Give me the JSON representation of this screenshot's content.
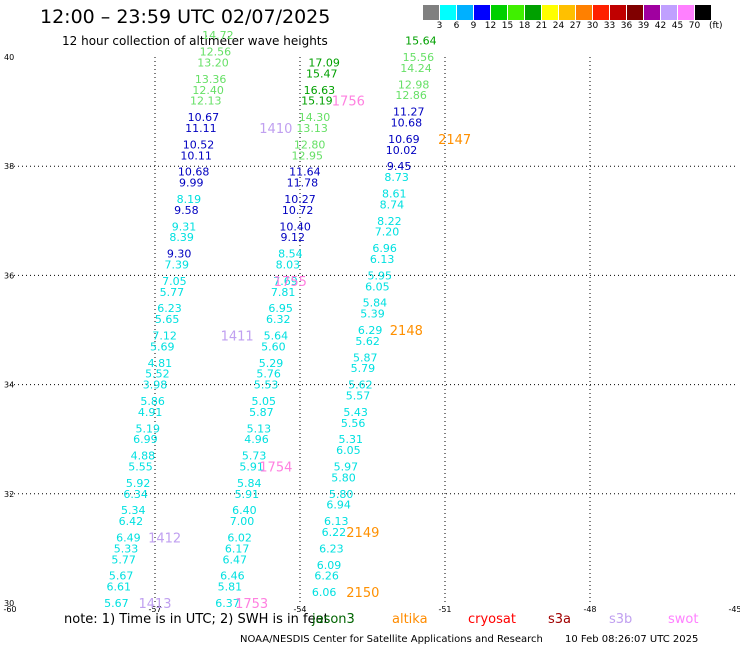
{
  "header": {
    "title": "12:00 – 23:59 UTC 02/07/2025",
    "subtitle": "12 hour collection of altimeter wave heights"
  },
  "colorbar": {
    "colors": [
      "#808080",
      "#00ffff",
      "#00b0ff",
      "#0000ff",
      "#00d000",
      "#40f000",
      "#00a000",
      "#ffff00",
      "#ffc000",
      "#ff8000",
      "#ff2000",
      "#c00000",
      "#800000",
      "#a000a0",
      "#c0a0ff",
      "#ff80ff",
      "#000000"
    ],
    "labels": [
      "3",
      "6",
      "9",
      "12",
      "15",
      "18",
      "21",
      "24",
      "27",
      "30",
      "33",
      "36",
      "39",
      "42",
      "45",
      "70"
    ],
    "unit": "(ft)"
  },
  "footer": {
    "note": "note: 1) Time is in UTC; 2) SWH is in feet",
    "credit": "NOAA/NESDIS Center for Satellite Applications and Research",
    "timestamp": "10 Feb 08:26:07 UTC 2025",
    "missions": [
      {
        "label": "jason3",
        "color": "#006400"
      },
      {
        "label": "altika",
        "color": "#ff8c00"
      },
      {
        "label": "cryosat",
        "color": "#ff0000"
      },
      {
        "label": "s3a",
        "color": "#a00000"
      },
      {
        "label": "s3b",
        "color": "#c0a0f0"
      },
      {
        "label": "swot",
        "color": "#ff80ff"
      }
    ]
  },
  "chart_data": {
    "type": "scatter",
    "xlim": [
      -60,
      -45
    ],
    "ylim": [
      30,
      40
    ],
    "x_ticks": [
      "-60",
      "-57",
      "-54",
      "-51",
      "-48",
      "-45"
    ],
    "y_ticks": [
      "30",
      "32",
      "34",
      "36",
      "38",
      "40"
    ],
    "grid": true,
    "series": [
      {
        "name": "1413",
        "points": [
          [
            "5.67",
            -57.8,
            30.0,
            "#00e0e0"
          ],
          [
            "6.61",
            -57.75,
            30.3,
            "#00e0e0"
          ],
          [
            "5.67",
            -57.7,
            30.5,
            "#00e0e0"
          ],
          [
            "5.77",
            -57.65,
            30.8,
            "#00e0e0"
          ],
          [
            "5.33",
            -57.6,
            31.0,
            "#00e0e0"
          ],
          [
            "6.49",
            -57.55,
            31.2,
            "#00e0e0"
          ],
          [
            "6.42",
            -57.5,
            31.5,
            "#00e0e0"
          ],
          [
            "5.34",
            -57.45,
            31.7,
            "#00e0e0"
          ],
          [
            "6.34",
            -57.4,
            32.0,
            "#00e0e0"
          ],
          [
            "5.92",
            -57.35,
            32.2,
            "#00e0e0"
          ],
          [
            "5.55",
            -57.3,
            32.5,
            "#00e0e0"
          ],
          [
            "4.88",
            -57.25,
            32.7,
            "#00e0e0"
          ],
          [
            "6.99",
            -57.2,
            33.0,
            "#00e0e0"
          ],
          [
            "5.19",
            -57.15,
            33.2,
            "#00e0e0"
          ],
          [
            "4.91",
            -57.1,
            33.5,
            "#00e0e0"
          ],
          [
            "5.86",
            -57.05,
            33.7,
            "#00e0e0"
          ],
          [
            "3.98",
            -57.0,
            34.0,
            "#00e0e0"
          ],
          [
            "5.52",
            -56.95,
            34.2,
            "#00e0e0"
          ],
          [
            "4.81",
            -56.9,
            34.4,
            "#00e0e0"
          ],
          [
            "5.69",
            -56.85,
            34.7,
            "#00e0e0"
          ],
          [
            "7.12",
            -56.8,
            34.9,
            "#00e0e0"
          ],
          [
            "5.65",
            -56.75,
            35.2,
            "#00e0e0"
          ],
          [
            "6.23",
            -56.7,
            35.4,
            "#00e0e0"
          ],
          [
            "5.77",
            -56.65,
            35.7,
            "#00e0e0"
          ],
          [
            "7.05",
            -56.6,
            35.9,
            "#00e0e0"
          ],
          [
            "7.39",
            -56.55,
            36.2,
            "#00e0e0"
          ],
          [
            "9.30",
            -56.5,
            36.4,
            "#0000c0"
          ],
          [
            "8.39",
            -56.45,
            36.7,
            "#00e0e0"
          ],
          [
            "9.31",
            -56.4,
            36.9,
            "#00e0e0"
          ],
          [
            "9.58",
            -56.35,
            37.2,
            "#0000c0"
          ],
          [
            "8.19",
            -56.3,
            37.4,
            "#00e0e0"
          ],
          [
            "9.99",
            -56.25,
            37.7,
            "#0000c0"
          ],
          [
            "10.68",
            -56.2,
            37.9,
            "#0000c0"
          ],
          [
            "10.11",
            -56.15,
            38.2,
            "#0000c0"
          ],
          [
            "10.52",
            -56.1,
            38.4,
            "#0000c0"
          ],
          [
            "11.11",
            -56.05,
            38.7,
            "#0000c0"
          ],
          [
            "10.67",
            -56.0,
            38.9,
            "#0000c0"
          ],
          [
            "12.13",
            -55.95,
            39.2,
            "#66e066"
          ],
          [
            "12.40",
            -55.9,
            39.4,
            "#66e066"
          ],
          [
            "13.36",
            -55.85,
            39.6,
            "#66e066"
          ],
          [
            "13.20",
            -55.8,
            39.9,
            "#66e066"
          ],
          [
            "12.56",
            -55.75,
            40.1,
            "#66e066"
          ],
          [
            "14.72",
            -55.7,
            40.4,
            "#66e066"
          ]
        ],
        "label_pos": [
          -57.0,
          30.0
        ]
      },
      {
        "name": "1412",
        "points": [],
        "label_pos": [
          -56.8,
          31.2
        ]
      },
      {
        "name": "1411",
        "points": [],
        "label_pos": [
          -55.3,
          34.9
        ]
      },
      {
        "name": "1410",
        "points": [],
        "label_pos": [
          -54.5,
          38.7
        ]
      },
      {
        "name": "1753",
        "points": [
          [
            "6.37",
            -55.5,
            30.0,
            "#00e0e0"
          ],
          [
            "5.81",
            -55.45,
            30.3,
            "#00e0e0"
          ],
          [
            "6.46",
            -55.4,
            30.5,
            "#00e0e0"
          ],
          [
            "6.47",
            -55.35,
            30.8,
            "#00e0e0"
          ],
          [
            "6.17",
            -55.3,
            31.0,
            "#00e0e0"
          ],
          [
            "6.02",
            -55.25,
            31.2,
            "#00e0e0"
          ],
          [
            "7.00",
            -55.2,
            31.5,
            "#00e0e0"
          ],
          [
            "6.40",
            -55.15,
            31.7,
            "#00e0e0"
          ],
          [
            "5.91",
            -55.1,
            32.0,
            "#00e0e0"
          ],
          [
            "5.84",
            -55.05,
            32.2,
            "#00e0e0"
          ],
          [
            "5.91",
            -55.0,
            32.5,
            "#00e0e0"
          ],
          [
            "5.73",
            -54.95,
            32.7,
            "#00e0e0"
          ],
          [
            "4.96",
            -54.9,
            33.0,
            "#00e0e0"
          ],
          [
            "5.13",
            -54.85,
            33.2,
            "#00e0e0"
          ],
          [
            "5.87",
            -54.8,
            33.5,
            "#00e0e0"
          ],
          [
            "5.05",
            -54.75,
            33.7,
            "#00e0e0"
          ],
          [
            "5.53",
            -54.7,
            34.0,
            "#00e0e0"
          ],
          [
            "5.76",
            -54.65,
            34.2,
            "#00e0e0"
          ],
          [
            "5.29",
            -54.6,
            34.4,
            "#00e0e0"
          ],
          [
            "5.60",
            -54.55,
            34.7,
            "#00e0e0"
          ],
          [
            "5.64",
            -54.5,
            34.9,
            "#00e0e0"
          ],
          [
            "6.32",
            -54.45,
            35.2,
            "#00e0e0"
          ],
          [
            "6.95",
            -54.4,
            35.4,
            "#00e0e0"
          ],
          [
            "7.81",
            -54.35,
            35.7,
            "#00e0e0"
          ],
          [
            "7.69",
            -54.3,
            35.9,
            "#00e0e0"
          ],
          [
            "8.03",
            -54.25,
            36.2,
            "#00e0e0"
          ],
          [
            "8.54",
            -54.2,
            36.4,
            "#00e0e0"
          ],
          [
            "9.12",
            -54.15,
            36.7,
            "#0000c0"
          ],
          [
            "10.40",
            -54.1,
            36.9,
            "#0000c0"
          ],
          [
            "10.72",
            -54.05,
            37.2,
            "#0000c0"
          ],
          [
            "10.27",
            -54.0,
            37.4,
            "#0000c0"
          ],
          [
            "11.78",
            -53.95,
            37.7,
            "#0000c0"
          ],
          [
            "11.64",
            -53.9,
            37.9,
            "#0000c0"
          ],
          [
            "12.95",
            -53.85,
            38.2,
            "#66e066"
          ],
          [
            "12.80",
            -53.8,
            38.4,
            "#66e066"
          ],
          [
            "13.13",
            -53.75,
            38.7,
            "#66e066"
          ],
          [
            "14.30",
            -53.7,
            38.9,
            "#66e066"
          ],
          [
            "15.19",
            -53.65,
            39.2,
            "#00a000"
          ],
          [
            "16.63",
            -53.6,
            39.4,
            "#00a000"
          ],
          [
            "15.47",
            -53.55,
            39.7,
            "#00a000"
          ],
          [
            "17.09",
            -53.5,
            39.9,
            "#00a000"
          ]
        ],
        "label_pos": [
          -55.0,
          30.0
        ]
      },
      {
        "name": "1754",
        "points": [],
        "label_pos": [
          -54.5,
          32.5
        ]
      },
      {
        "name": "1755",
        "points": [],
        "label_pos": [
          -54.2,
          35.9
        ]
      },
      {
        "name": "1756",
        "points": [],
        "label_pos": [
          -53.0,
          39.2
        ]
      },
      {
        "name": "2150",
        "points": [
          [
            "6.06",
            -53.5,
            30.2,
            "#00e0e0"
          ],
          [
            "6.26",
            -53.45,
            30.5,
            "#00e0e0"
          ],
          [
            "6.09",
            -53.4,
            30.7,
            "#00e0e0"
          ],
          [
            "6.23",
            -53.35,
            31.0,
            "#00e0e0"
          ],
          [
            "6.22",
            -53.3,
            31.3,
            "#00e0e0"
          ],
          [
            "6.13",
            -53.25,
            31.5,
            "#00e0e0"
          ],
          [
            "6.94",
            -53.2,
            31.8,
            "#00e0e0"
          ],
          [
            "5.80",
            -53.15,
            32.0,
            "#00e0e0"
          ],
          [
            "5.80",
            -53.1,
            32.3,
            "#00e0e0"
          ],
          [
            "5.97",
            -53.05,
            32.5,
            "#00e0e0"
          ],
          [
            "6.05",
            -53.0,
            32.8,
            "#00e0e0"
          ],
          [
            "5.31",
            -52.95,
            33.0,
            "#00e0e0"
          ],
          [
            "5.56",
            -52.9,
            33.3,
            "#00e0e0"
          ],
          [
            "5.43",
            -52.85,
            33.5,
            "#00e0e0"
          ],
          [
            "5.57",
            -52.8,
            33.8,
            "#00e0e0"
          ],
          [
            "5.62",
            -52.75,
            34.0,
            "#00e0e0"
          ],
          [
            "5.79",
            -52.7,
            34.3,
            "#00e0e0"
          ],
          [
            "5.87",
            -52.65,
            34.5,
            "#00e0e0"
          ],
          [
            "5.62",
            -52.6,
            34.8,
            "#00e0e0"
          ],
          [
            "6.29",
            -52.55,
            35.0,
            "#00e0e0"
          ],
          [
            "5.39",
            -52.5,
            35.3,
            "#00e0e0"
          ],
          [
            "5.84",
            -52.45,
            35.5,
            "#00e0e0"
          ],
          [
            "6.05",
            -52.4,
            35.8,
            "#00e0e0"
          ],
          [
            "5.95",
            -52.35,
            36.0,
            "#00e0e0"
          ],
          [
            "6.13",
            -52.3,
            36.3,
            "#00e0e0"
          ],
          [
            "6.96",
            -52.25,
            36.5,
            "#00e0e0"
          ],
          [
            "7.20",
            -52.2,
            36.8,
            "#00e0e0"
          ],
          [
            "8.22",
            -52.15,
            37.0,
            "#00e0e0"
          ],
          [
            "8.74",
            -52.1,
            37.3,
            "#00e0e0"
          ],
          [
            "8.61",
            -52.05,
            37.5,
            "#00e0e0"
          ],
          [
            "8.73",
            -52.0,
            37.8,
            "#00e0e0"
          ],
          [
            "9.45",
            -51.95,
            38.0,
            "#0000c0"
          ],
          [
            "10.02",
            -51.9,
            38.3,
            "#0000c0"
          ],
          [
            "10.69",
            -51.85,
            38.5,
            "#0000c0"
          ],
          [
            "10.68",
            -51.8,
            38.8,
            "#0000c0"
          ],
          [
            "11.27",
            -51.75,
            39.0,
            "#0000c0"
          ],
          [
            "12.86",
            -51.7,
            39.3,
            "#66e066"
          ],
          [
            "12.98",
            -51.65,
            39.5,
            "#66e066"
          ],
          [
            "14.24",
            -51.6,
            39.8,
            "#66e066"
          ],
          [
            "15.56",
            -51.55,
            40.0,
            "#66e066"
          ],
          [
            "15.64",
            -51.5,
            40.3,
            "#00a000"
          ]
        ],
        "label_pos": [
          -52.7,
          30.2
        ]
      },
      {
        "name": "2149",
        "points": [],
        "label_pos": [
          -52.7,
          31.3
        ]
      },
      {
        "name": "2148",
        "points": [],
        "label_pos": [
          -51.8,
          35.0
        ]
      },
      {
        "name": "2147",
        "points": [],
        "label_pos": [
          -50.8,
          38.5
        ]
      }
    ]
  }
}
